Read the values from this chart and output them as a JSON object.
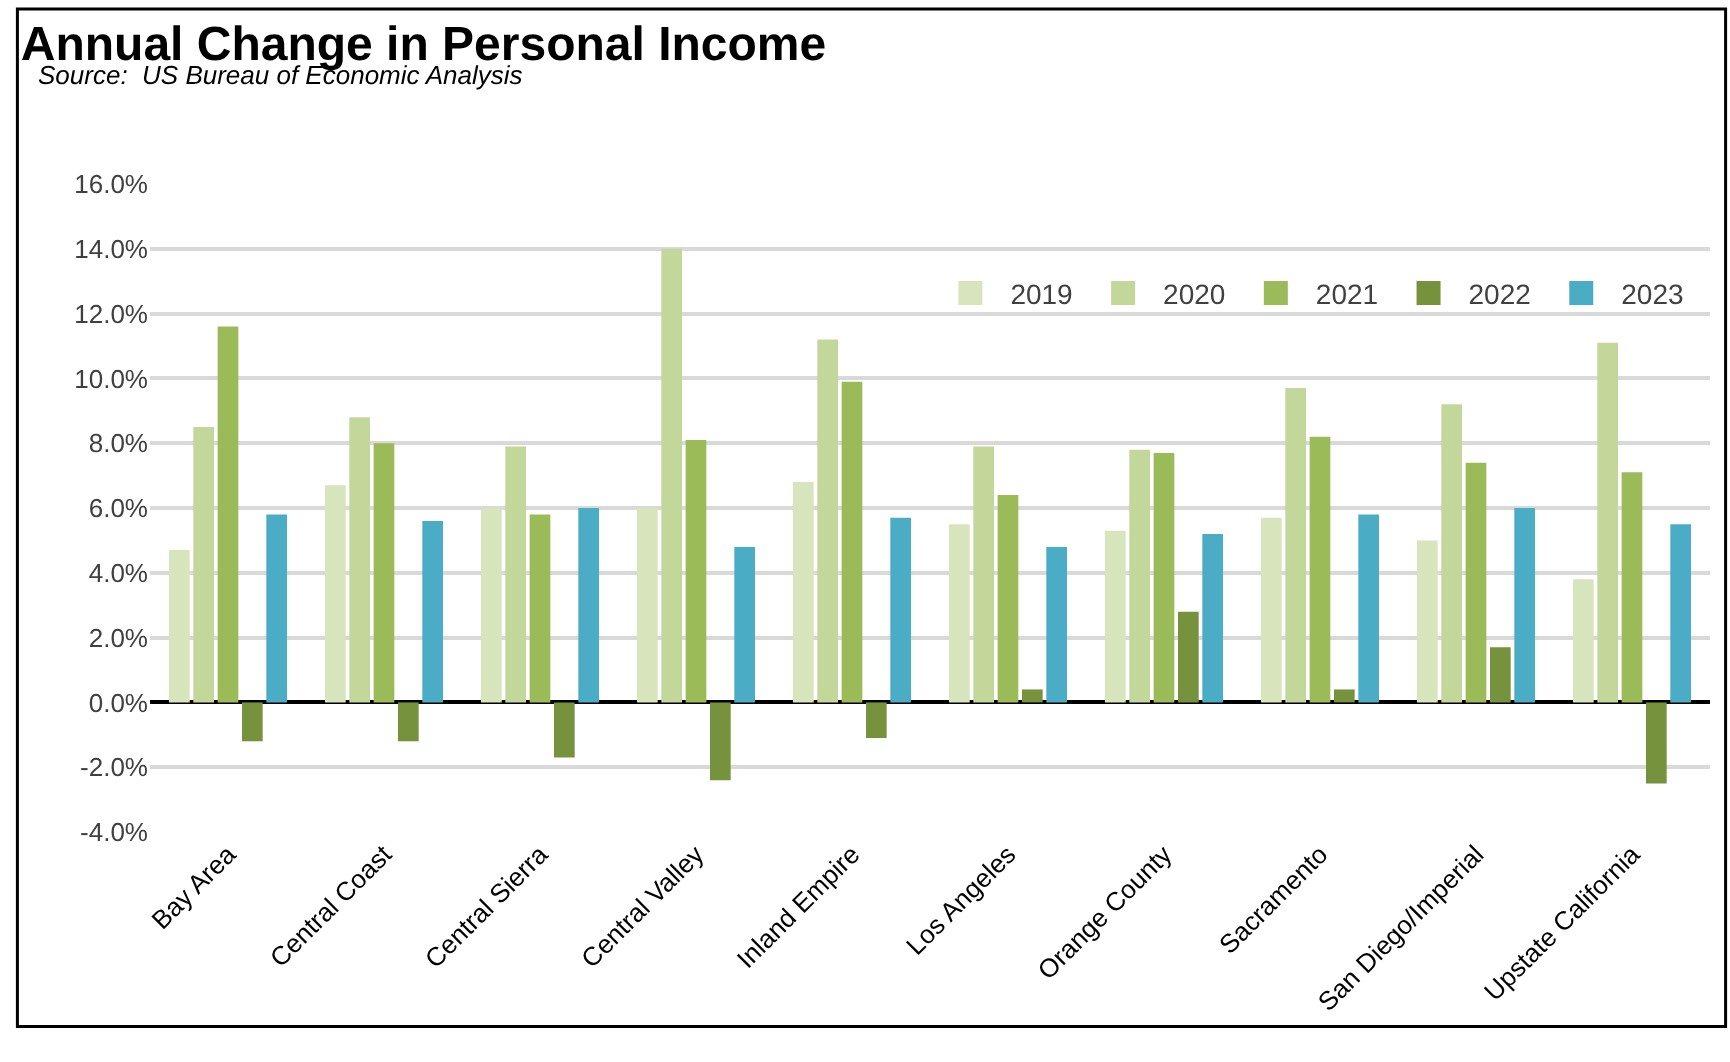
{
  "chart_data": {
    "type": "bar",
    "title": "Annual Change in Personal Income",
    "subtitle": "Source:  US Bureau of Economic Analysis",
    "categories": [
      "Bay Area",
      "Central Coast",
      "Central Sierra",
      "Central Valley",
      "Inland Empire",
      "Los Angeles",
      "Orange County",
      "Sacramento",
      "San Diego/Imperial",
      "Upstate California"
    ],
    "series": [
      {
        "name": "2019",
        "color": "#d8e4bc",
        "values": [
          4.7,
          6.7,
          6.0,
          6.0,
          6.8,
          5.5,
          5.3,
          5.7,
          5.0,
          3.8
        ]
      },
      {
        "name": "2020",
        "color": "#c4d79b",
        "values": [
          8.5,
          8.8,
          7.9,
          14.0,
          11.2,
          7.9,
          7.8,
          9.7,
          9.2,
          11.1
        ]
      },
      {
        "name": "2021",
        "color": "#9bbb59",
        "values": [
          11.6,
          8.0,
          5.8,
          8.1,
          9.9,
          6.4,
          7.7,
          8.2,
          7.4,
          7.1
        ]
      },
      {
        "name": "2022",
        "color": "#76923c",
        "values": [
          -1.2,
          -1.2,
          -1.7,
          -2.4,
          -1.1,
          0.4,
          2.8,
          0.4,
          1.7,
          -2.5
        ]
      },
      {
        "name": "2023",
        "color": "#4bacc6",
        "values": [
          5.8,
          5.6,
          6.0,
          4.8,
          5.7,
          4.8,
          5.2,
          5.8,
          6.0,
          5.5
        ]
      }
    ],
    "ylim": [
      -4,
      16
    ],
    "yticks": [
      {
        "value": -4,
        "label": "-4.0%"
      },
      {
        "value": -2,
        "label": "-2.0%"
      },
      {
        "value": 0,
        "label": "0.0%"
      },
      {
        "value": 2,
        "label": "2.0%"
      },
      {
        "value": 4,
        "label": "4.0%"
      },
      {
        "value": 6,
        "label": "6.0%"
      },
      {
        "value": 8,
        "label": "8.0%"
      },
      {
        "value": 10,
        "label": "10.0%"
      },
      {
        "value": 12,
        "label": "12.0%"
      },
      {
        "value": 14,
        "label": "14.0%"
      },
      {
        "value": 16,
        "label": "16.0%"
      }
    ],
    "grid": "y",
    "legend": "top right"
  }
}
